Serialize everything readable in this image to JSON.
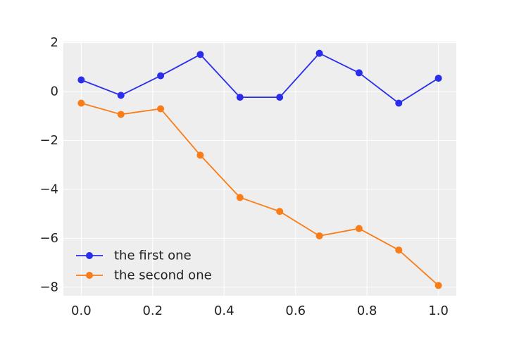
{
  "chart_data": {
    "type": "line",
    "x": [
      0.0,
      0.1111,
      0.2222,
      0.3333,
      0.4444,
      0.5556,
      0.6667,
      0.7778,
      0.8889,
      1.0
    ],
    "series": [
      {
        "name": "the first one",
        "color": "#2a2eec",
        "values": [
          0.48,
          -0.15,
          0.65,
          1.52,
          -0.23,
          -0.23,
          1.57,
          0.77,
          -0.47,
          0.55
        ]
      },
      {
        "name": "the second one",
        "color": "#fa7c17",
        "values": [
          -0.47,
          -0.93,
          -0.7,
          -2.6,
          -4.33,
          -4.9,
          -5.9,
          -5.6,
          -6.48,
          -7.93
        ]
      }
    ],
    "xlim": [
      -0.05,
      1.05
    ],
    "ylim": [
      -8.35,
      2.05
    ],
    "xticks": [
      0.0,
      0.2,
      0.4,
      0.6,
      0.8,
      1.0
    ],
    "xtick_labels": [
      "0.0",
      "0.2",
      "0.4",
      "0.6",
      "0.8",
      "1.0"
    ],
    "yticks": [
      2,
      0,
      -2,
      -4,
      -6,
      -8
    ],
    "ytick_labels": [
      "2",
      "0",
      "−2",
      "−4",
      "−6",
      "−8"
    ],
    "grid": true,
    "legend_position": "lower-left",
    "background_color": "#eeeeee",
    "grid_color": "#ffffff",
    "marker": "circle"
  }
}
